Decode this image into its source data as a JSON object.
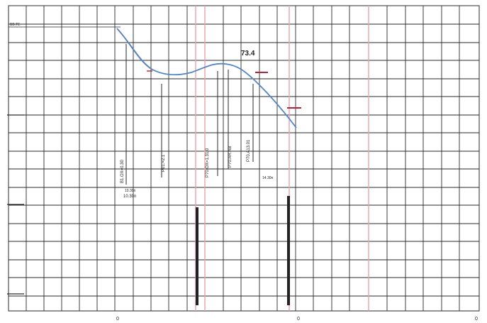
{
  "axis": {
    "y_top_label": "BB.TE",
    "x_tick_labels": [
      "0",
      "0",
      "0"
    ]
  },
  "peak_label": "73.4",
  "annotations": {
    "ann1": "10.30n",
    "ann2": "10.30n",
    "ann3": "14.30n"
  },
  "vertical_labels": {
    "v1": "B1.OX=0.30",
    "v2": "P01.=2.1",
    "v3": "P70.OX=1.31.0",
    "v4": "P70.AR.AB",
    "v5": "P70.A13.01"
  },
  "colors": {
    "grid": "#2a2a2a",
    "red_line": "#e8a0b0",
    "curve": "#4f85c9",
    "marker": "#c02034",
    "dark_bar": "#222222"
  }
}
